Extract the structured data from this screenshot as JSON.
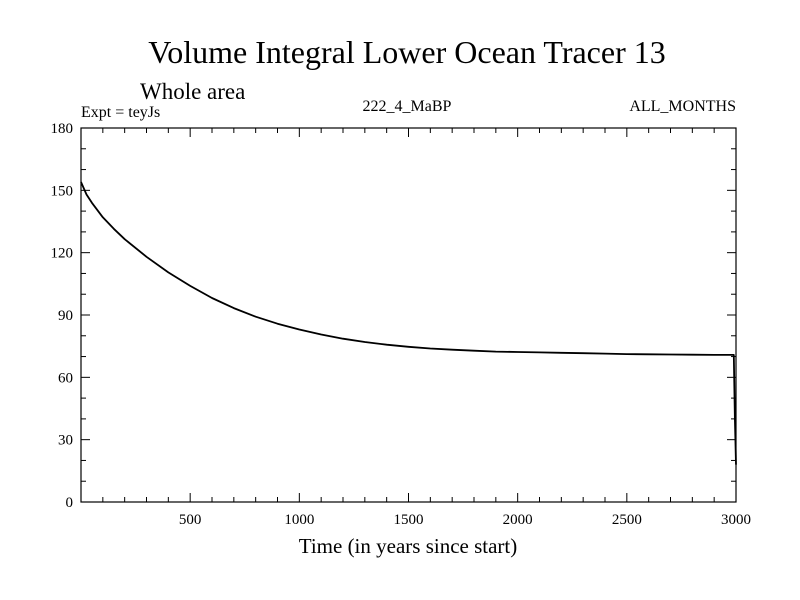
{
  "chart_data": {
    "type": "line",
    "title": "Volume Integral Lower Ocean Tracer 13",
    "subtitle": "Whole area",
    "experiment_label": "Expt = teyJs",
    "run_label": "222_4_MaBP",
    "period_label": "ALL_MONTHS",
    "xlabel": "Time (in years since start)",
    "ylabel": "",
    "xlim": [
      0,
      3000
    ],
    "ylim": [
      0,
      180
    ],
    "x_ticks": [
      500,
      1000,
      1500,
      2000,
      2500,
      3000
    ],
    "x_tick_labels": [
      "500",
      "1000",
      "1500",
      "2000",
      "2500",
      "3000"
    ],
    "y_ticks": [
      0,
      30,
      60,
      90,
      120,
      150,
      180
    ],
    "y_tick_labels": [
      "0",
      "30",
      "60",
      "90",
      "120",
      "150",
      "180"
    ],
    "grid": false,
    "series": [
      {
        "name": "Tracer 13",
        "color": "#000000",
        "x": [
          0,
          25,
          50,
          100,
          150,
          200,
          300,
          400,
          500,
          600,
          700,
          800,
          900,
          1000,
          1100,
          1200,
          1300,
          1400,
          1500,
          1600,
          1700,
          1800,
          1900,
          2000,
          2100,
          2200,
          2300,
          2400,
          2500,
          2600,
          2700,
          2800,
          2900,
          2990,
          2995,
          3000
        ],
        "y": [
          154,
          148,
          144,
          137,
          131.5,
          126.5,
          118,
          110.5,
          104,
          98.2,
          93.3,
          89.2,
          85.8,
          83,
          80.6,
          78.6,
          77,
          75.7,
          74.7,
          73.9,
          73.3,
          72.8,
          72.4,
          72.2,
          72,
          71.8,
          71.6,
          71.4,
          71.2,
          71.1,
          71,
          70.9,
          70.8,
          70.8,
          40,
          18
        ]
      }
    ]
  }
}
